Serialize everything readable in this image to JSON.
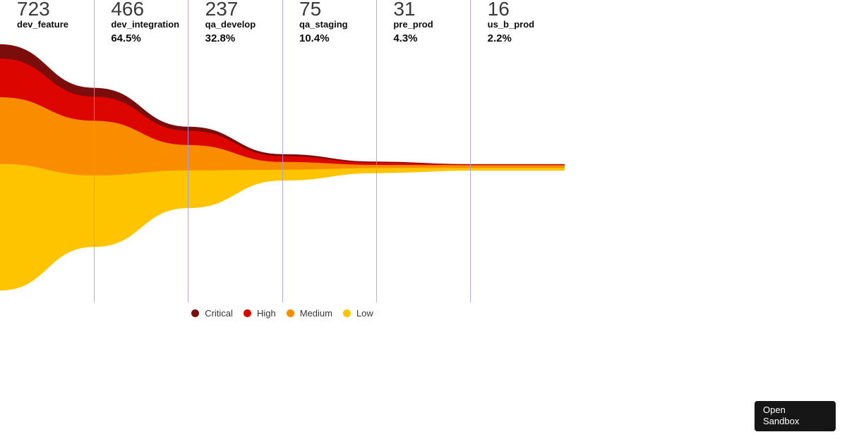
{
  "chart_data": {
    "type": "area",
    "subtype": "funnel",
    "title": "",
    "categories": [
      "dev_feature",
      "dev_integration",
      "qa_develop",
      "qa_staging",
      "pre_prod",
      "us_b_prod"
    ],
    "totals": [
      723,
      466,
      237,
      75,
      31,
      16
    ],
    "percentages": [
      null,
      "64.5%",
      "32.8%",
      "10.4%",
      "4.3%",
      "2.2%"
    ],
    "series": [
      {
        "name": "Critical",
        "color": "#7b0d0d",
        "values": [
          42,
          26,
          12,
          6,
          3,
          1
        ]
      },
      {
        "name": "High",
        "color": "#dc0500",
        "values": [
          114,
          71,
          42,
          17,
          7,
          2
        ]
      },
      {
        "name": "Medium",
        "color": "#fa8c00",
        "values": [
          197,
          161,
          75,
          23,
          9,
          8
        ]
      },
      {
        "name": "Low",
        "color": "#ffc400",
        "values": [
          370,
          208,
          108,
          29,
          12,
          5
        ]
      }
    ],
    "legend_position": "bottom",
    "grid": "vertical stage dividers",
    "divider_color": "#a09be2"
  },
  "sandbox_button": {
    "label": "Open Sandbox"
  }
}
